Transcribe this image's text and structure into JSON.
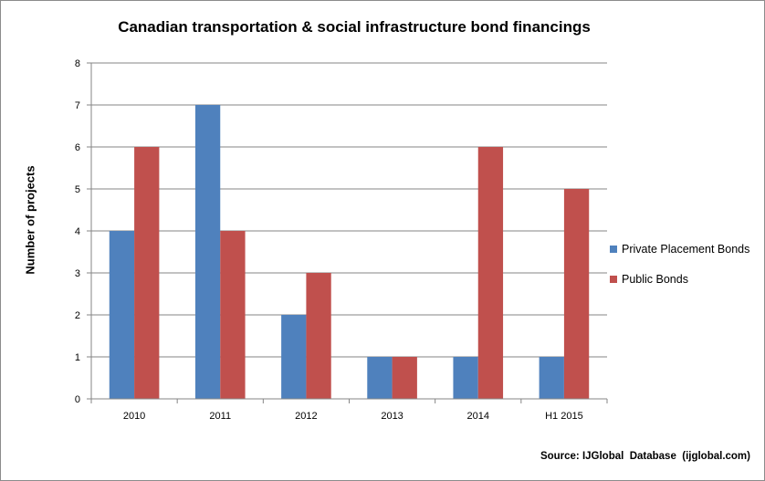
{
  "chart_data": {
    "type": "bar",
    "title": "Canadian transportation & social infrastructure bond financings",
    "ylabel": "Number of projects",
    "xlabel": "",
    "categories": [
      "2010",
      "2011",
      "2012",
      "2013",
      "2014",
      "H1 2015"
    ],
    "series": [
      {
        "name": "Private Placement Bonds",
        "values": [
          4,
          7,
          2,
          1,
          1,
          1
        ],
        "color": "#4f81bd"
      },
      {
        "name": "Public Bonds",
        "values": [
          6,
          4,
          3,
          1,
          6,
          5
        ],
        "color": "#c0504d"
      }
    ],
    "ylim": [
      0,
      8
    ],
    "yticks": [
      "0",
      "1",
      "2",
      "3",
      "4",
      "5",
      "6",
      "7",
      "8"
    ],
    "grid": true,
    "legend_position": "right",
    "source": "Source: IJGlobal  Database  (ijglobal.com)"
  }
}
